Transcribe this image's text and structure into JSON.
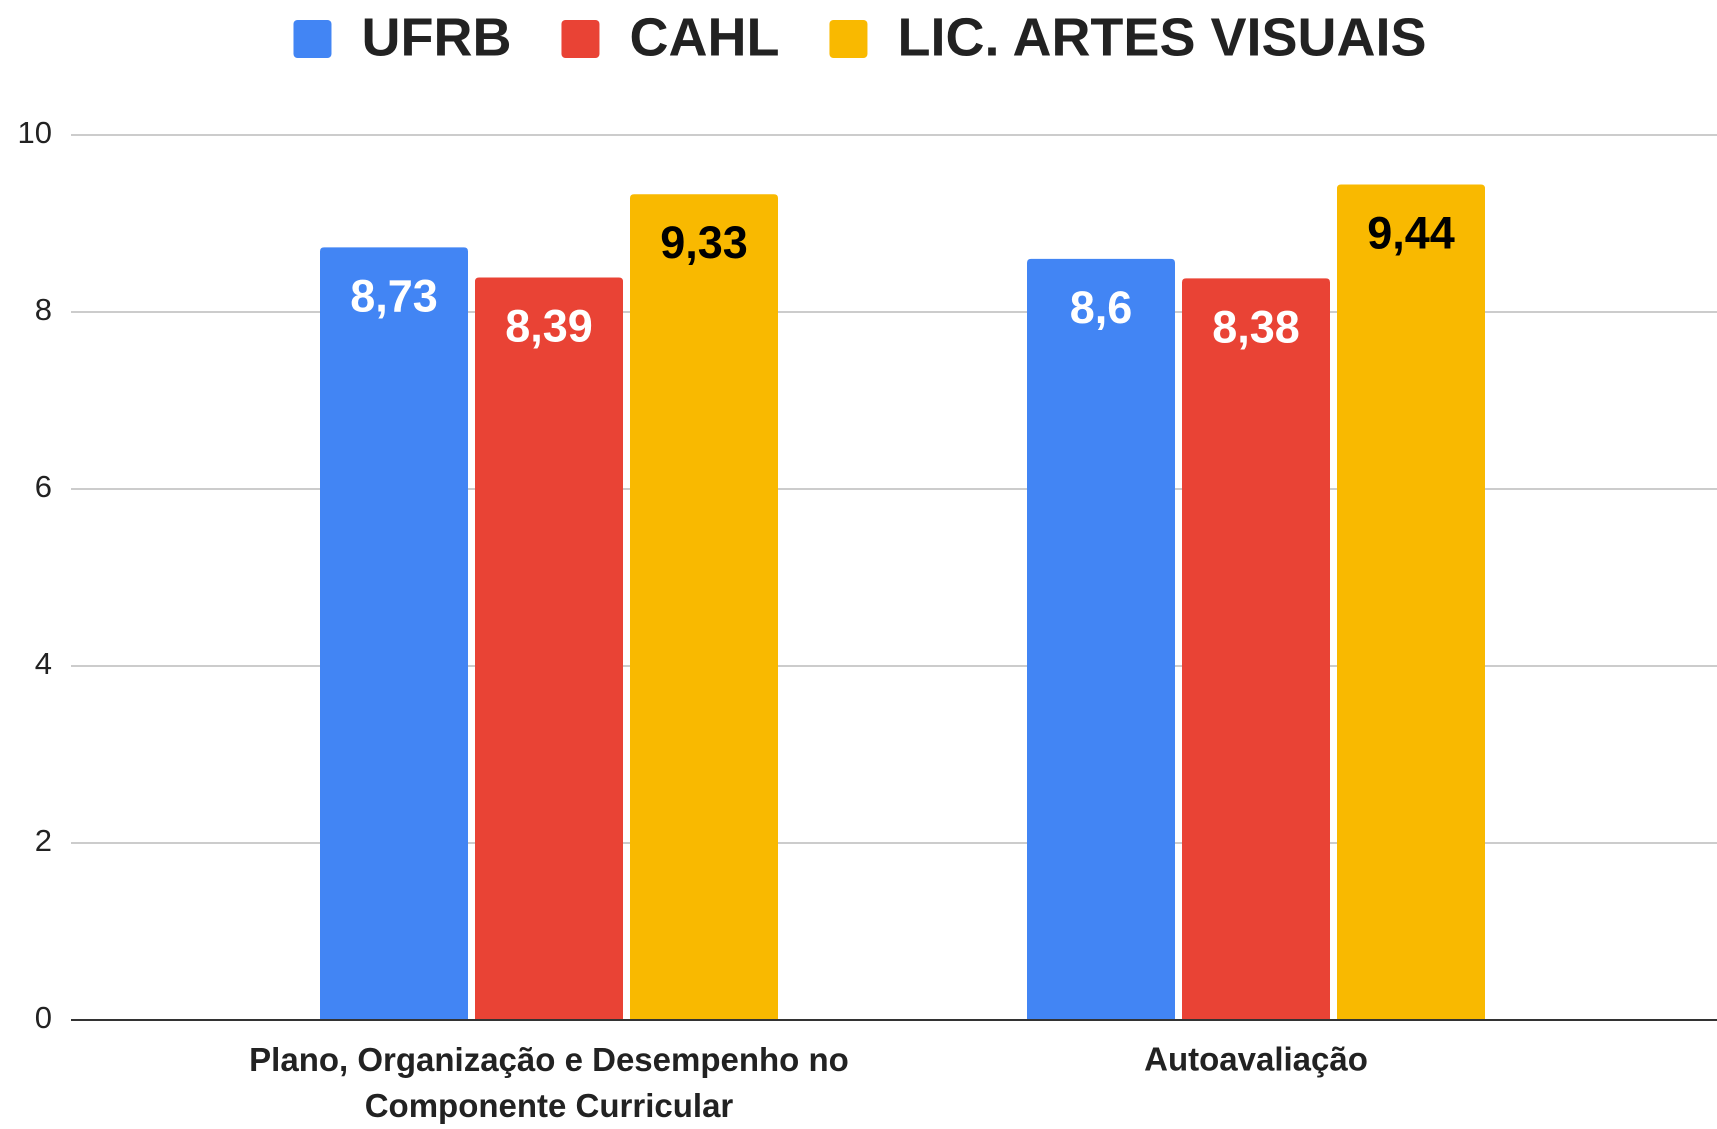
{
  "chart_data": {
    "type": "bar",
    "categories": [
      "Plano, Organização e Desempenho no Componente Curricular",
      "Autoavaliação"
    ],
    "series": [
      {
        "name": "UFRB",
        "color": "#4285f4",
        "label_color": "#ffffff",
        "values": [
          8.73,
          8.6
        ],
        "value_labels": [
          "8,73",
          "8,6"
        ]
      },
      {
        "name": "CAHL",
        "color": "#e94335",
        "label_color": "#ffffff",
        "values": [
          8.39,
          8.38
        ],
        "value_labels": [
          "8,39",
          "8,38"
        ]
      },
      {
        "name": "LIC. ARTES VISUAIS",
        "color": "#f9b900",
        "label_color": "#000000",
        "values": [
          9.33,
          9.44
        ],
        "value_labels": [
          "9,33",
          "9,44"
        ]
      }
    ],
    "ylim": [
      0,
      10
    ],
    "yticks": [
      0,
      2,
      4,
      6,
      8,
      10
    ],
    "grid": true,
    "legend": "top"
  }
}
